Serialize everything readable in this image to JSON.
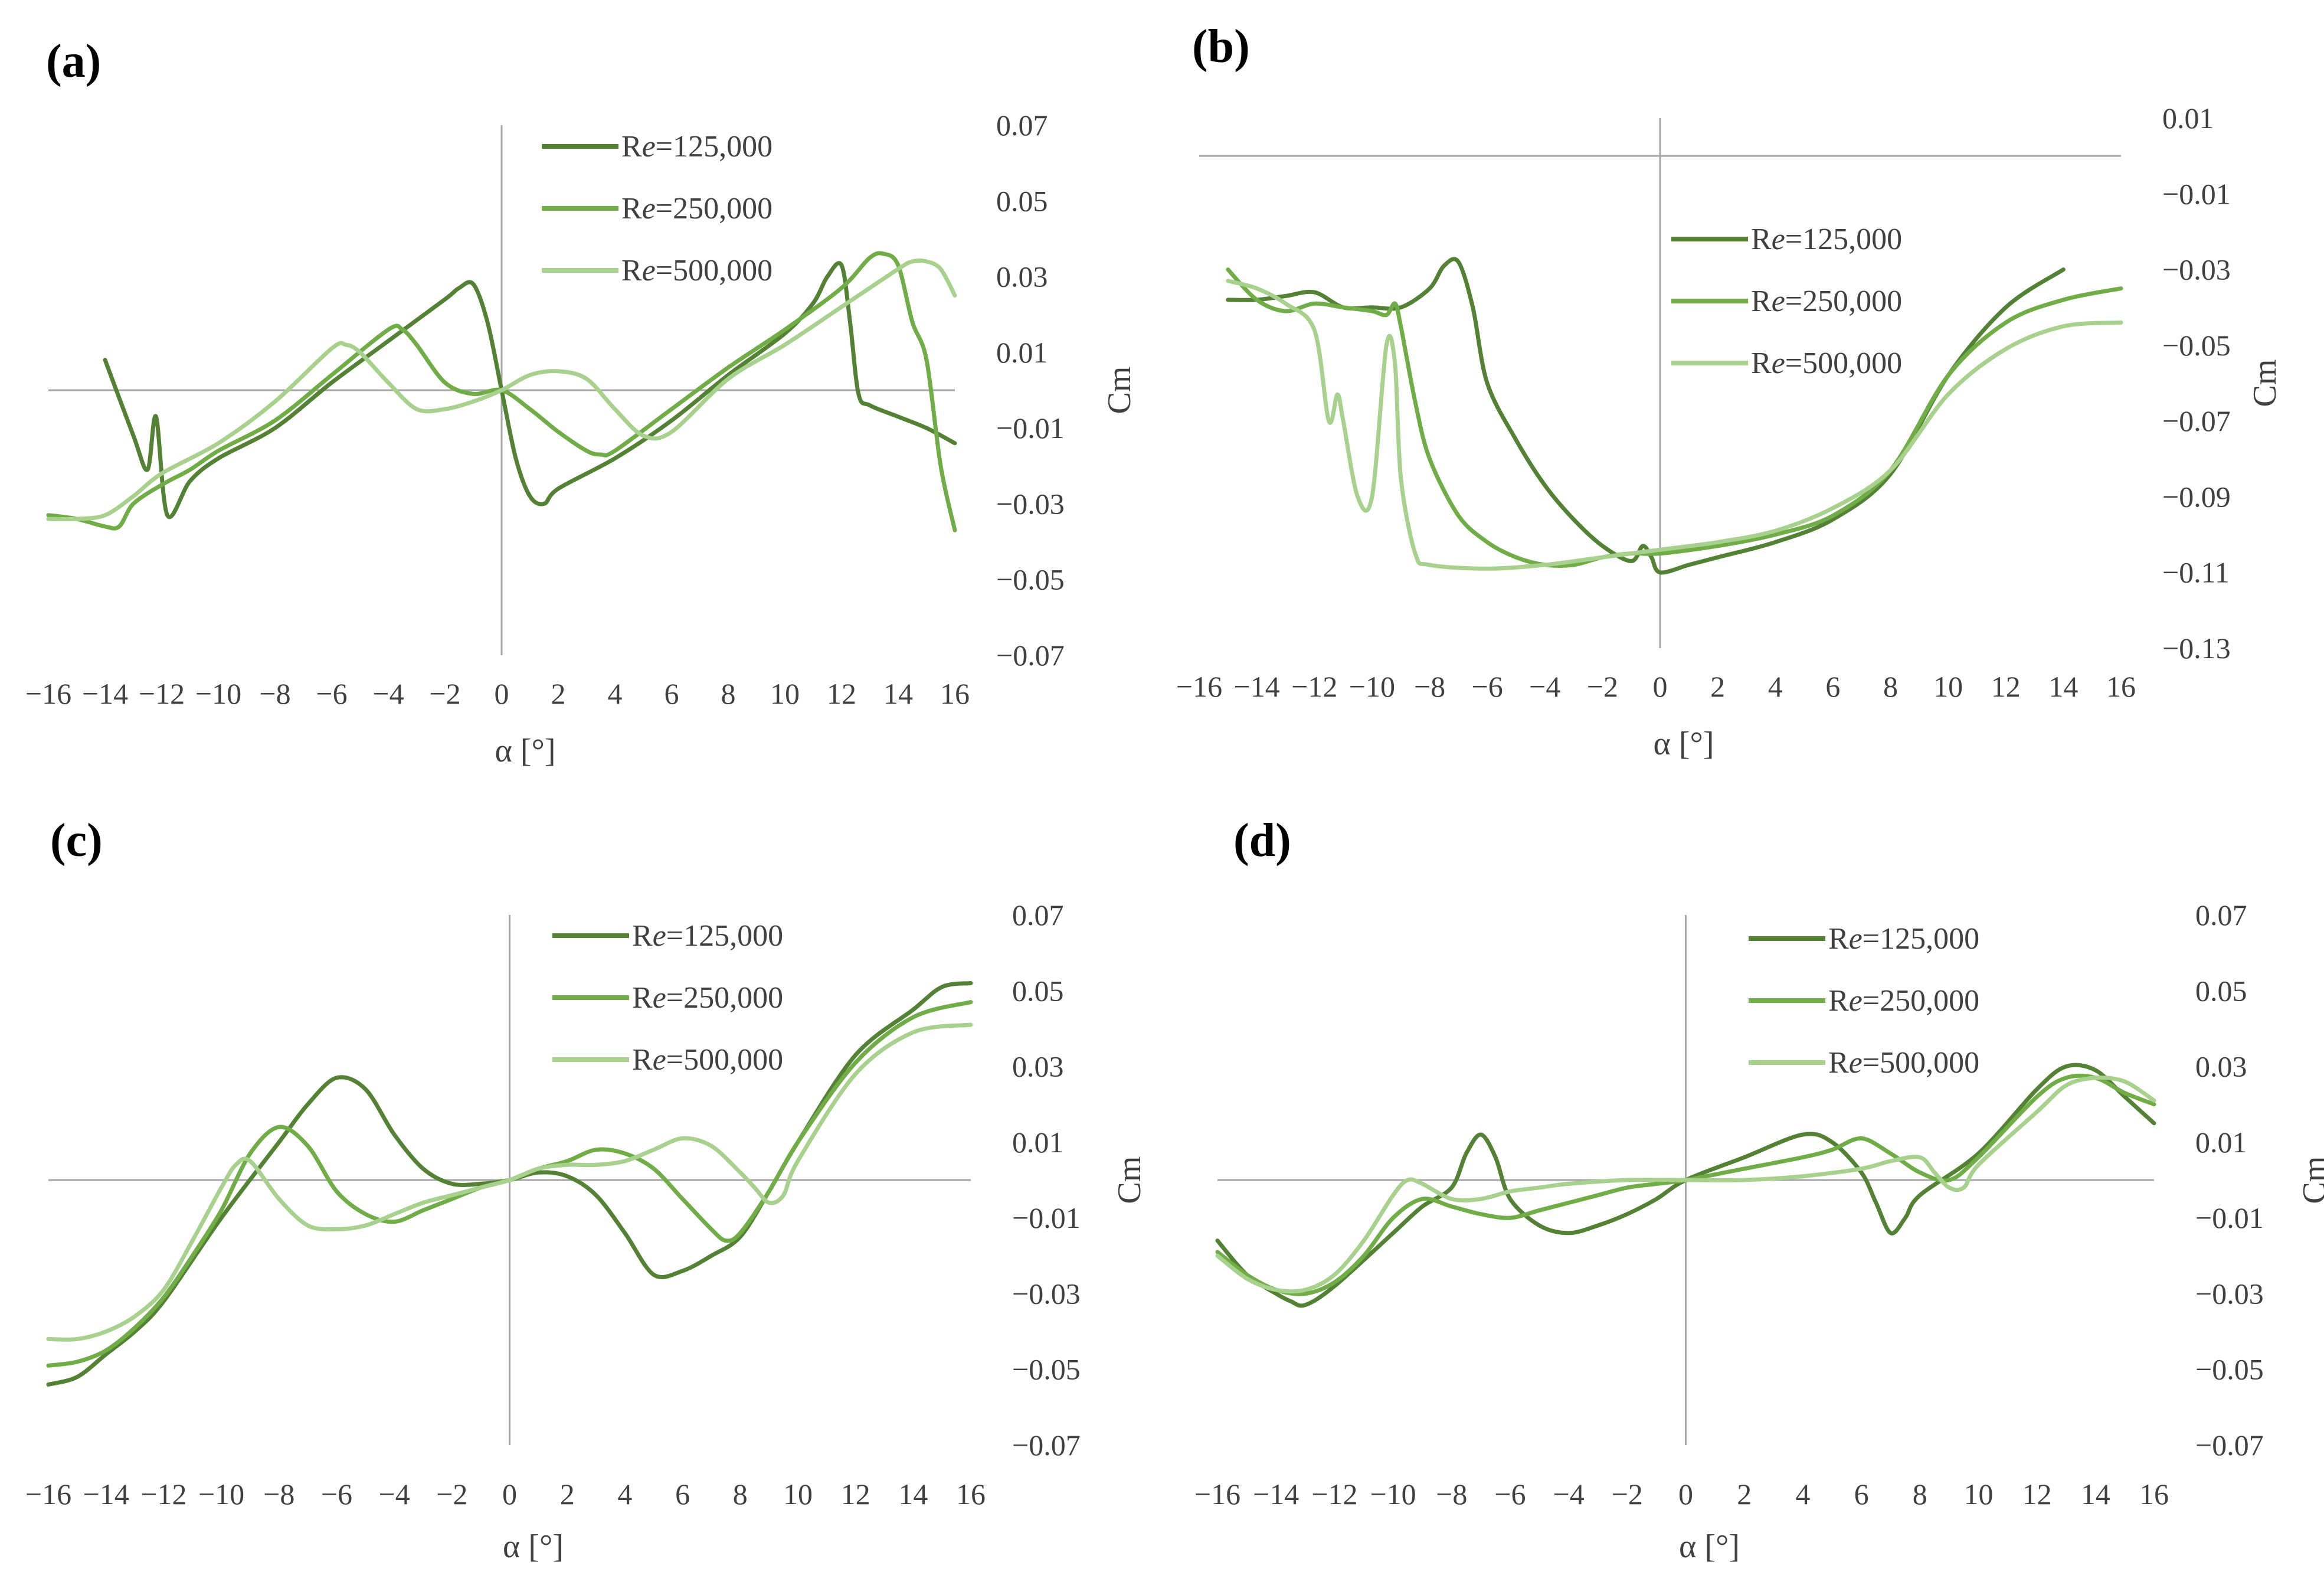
{
  "figure": {
    "colors": {
      "re125": "#548235",
      "re250": "#70ad47",
      "re500": "#a9d18e",
      "axis": "#a6a6a6",
      "text": "#404040"
    }
  },
  "chart_data": [
    {
      "panel": "(a)",
      "type": "line",
      "xlabel": "α [°]",
      "ylabel": "Cm",
      "xlim": [
        -16,
        16
      ],
      "ylim": [
        -0.07,
        0.07
      ],
      "x_ticks": [
        -16,
        -14,
        -12,
        -10,
        -8,
        -6,
        -4,
        -2,
        0,
        2,
        4,
        6,
        8,
        10,
        12,
        14,
        16
      ],
      "y_ticks": [
        0.07,
        0.05,
        0.03,
        0.01,
        -0.01,
        -0.03,
        -0.05,
        -0.07
      ],
      "series": [
        {
          "name": "Re=125,000",
          "x": [
            -14,
            -13,
            -12.5,
            -12.2,
            -11.8,
            -11,
            -10,
            -8,
            -6,
            -4,
            -2,
            -1.5,
            -1,
            -0.5,
            0,
            0.5,
            1,
            1.5,
            2,
            4,
            6,
            8,
            10,
            11,
            11.5,
            12,
            12.3,
            12.6,
            13,
            14,
            15,
            16
          ],
          "y": [
            0.008,
            -0.012,
            -0.021,
            -0.007,
            -0.033,
            -0.024,
            -0.018,
            -0.01,
            0.002,
            0.013,
            0.024,
            0.027,
            0.028,
            0.018,
            0.0,
            -0.018,
            -0.028,
            -0.03,
            -0.026,
            -0.018,
            -0.008,
            0.004,
            0.015,
            0.023,
            0.03,
            0.033,
            0.018,
            -0.001,
            -0.004,
            -0.007,
            -0.01,
            -0.014
          ]
        },
        {
          "name": "Re=250,000",
          "x": [
            -16,
            -15,
            -14,
            -13.5,
            -13,
            -12,
            -11,
            -10,
            -8,
            -6,
            -4,
            -3.5,
            -3,
            -2,
            -1,
            0,
            1,
            2,
            3,
            3.5,
            4,
            6,
            8,
            10,
            12,
            13,
            13.5,
            14,
            14.5,
            15,
            15.5,
            16
          ],
          "y": [
            -0.033,
            -0.034,
            -0.036,
            -0.036,
            -0.03,
            -0.025,
            -0.021,
            -0.016,
            -0.008,
            0.004,
            0.016,
            0.016,
            0.012,
            0.002,
            -0.001,
            0.0,
            -0.005,
            -0.011,
            -0.016,
            -0.017,
            -0.016,
            -0.005,
            0.006,
            0.016,
            0.027,
            0.035,
            0.036,
            0.033,
            0.018,
            0.008,
            -0.02,
            -0.037
          ]
        },
        {
          "name": "Re=500,000",
          "x": [
            -16,
            -15,
            -14,
            -13,
            -12,
            -10,
            -8,
            -6,
            -5.5,
            -5,
            -4,
            -3,
            -2,
            -1,
            0,
            1,
            2,
            3,
            4,
            5,
            6,
            8,
            10,
            12,
            14,
            14.5,
            15,
            15.5,
            16
          ],
          "y": [
            -0.034,
            -0.034,
            -0.033,
            -0.028,
            -0.022,
            -0.014,
            -0.003,
            0.011,
            0.012,
            0.01,
            0.002,
            -0.005,
            -0.005,
            -0.003,
            0.0,
            0.004,
            0.005,
            0.003,
            -0.005,
            -0.012,
            -0.011,
            0.003,
            0.012,
            0.022,
            0.032,
            0.034,
            0.034,
            0.032,
            0.025
          ]
        }
      ]
    },
    {
      "panel": "(b)",
      "type": "line",
      "xlabel": "α [°]",
      "ylabel": "Cm",
      "xlim": [
        -16,
        16
      ],
      "ylim": [
        -0.13,
        0.01
      ],
      "x_ticks": [
        -16,
        -14,
        -12,
        -10,
        -8,
        -6,
        -4,
        -2,
        0,
        2,
        4,
        6,
        8,
        10,
        12,
        14,
        16
      ],
      "y_ticks": [
        0.01,
        -0.01,
        -0.03,
        -0.05,
        -0.07,
        -0.09,
        -0.11,
        -0.13
      ],
      "series": [
        {
          "name": "Re=125,000",
          "x": [
            -15,
            -14,
            -13,
            -12,
            -11,
            -10,
            -9,
            -8,
            -7.5,
            -7,
            -6.5,
            -6,
            -5,
            -4,
            -3,
            -2,
            -1,
            -0.6,
            -0.3,
            0,
            1,
            2,
            4,
            6,
            8,
            10,
            12,
            14
          ],
          "y": [
            -0.038,
            -0.038,
            -0.037,
            -0.036,
            -0.04,
            -0.04,
            -0.04,
            -0.035,
            -0.029,
            -0.028,
            -0.04,
            -0.06,
            -0.075,
            -0.087,
            -0.096,
            -0.103,
            -0.107,
            -0.103,
            -0.106,
            -0.11,
            -0.108,
            -0.106,
            -0.102,
            -0.096,
            -0.084,
            -0.058,
            -0.04,
            -0.03
          ]
        },
        {
          "name": "Re=250,000",
          "x": [
            -15,
            -14,
            -13,
            -12,
            -11,
            -10,
            -9.5,
            -9.2,
            -9,
            -8.5,
            -8,
            -7,
            -6,
            -5,
            -4,
            -3,
            -2,
            -1,
            0,
            2,
            4,
            6,
            8,
            10,
            12,
            14,
            16
          ],
          "y": [
            -0.03,
            -0.038,
            -0.041,
            -0.039,
            -0.04,
            -0.041,
            -0.042,
            -0.039,
            -0.045,
            -0.065,
            -0.08,
            -0.095,
            -0.102,
            -0.106,
            -0.108,
            -0.108,
            -0.106,
            -0.105,
            -0.105,
            -0.103,
            -0.1,
            -0.095,
            -0.083,
            -0.058,
            -0.044,
            -0.038,
            -0.035
          ]
        },
        {
          "name": "Re=500,000",
          "x": [
            -15,
            -14,
            -13,
            -12,
            -11.5,
            -11.2,
            -11,
            -10.5,
            -10,
            -9.5,
            -9.2,
            -9,
            -8.5,
            -8,
            -6,
            -4,
            -2,
            0,
            2,
            4,
            6,
            8,
            10,
            12,
            14,
            16
          ],
          "y": [
            -0.033,
            -0.035,
            -0.039,
            -0.046,
            -0.07,
            -0.063,
            -0.07,
            -0.09,
            -0.09,
            -0.05,
            -0.055,
            -0.085,
            -0.105,
            -0.108,
            -0.109,
            -0.108,
            -0.106,
            -0.104,
            -0.102,
            -0.099,
            -0.093,
            -0.083,
            -0.063,
            -0.051,
            -0.045,
            -0.044
          ]
        }
      ]
    },
    {
      "panel": "(c)",
      "type": "line",
      "xlabel": "α [°]",
      "ylabel": "Cm",
      "xlim": [
        -16,
        16
      ],
      "ylim": [
        -0.07,
        0.07
      ],
      "x_ticks": [
        -16,
        -14,
        -12,
        -10,
        -8,
        -6,
        -4,
        -2,
        0,
        2,
        4,
        6,
        8,
        10,
        12,
        14,
        16
      ],
      "y_ticks": [
        0.07,
        0.05,
        0.03,
        0.01,
        -0.01,
        -0.03,
        -0.05,
        -0.07
      ],
      "series": [
        {
          "name": "Re=125,000",
          "x": [
            -16,
            -15,
            -14,
            -13,
            -12,
            -10,
            -8,
            -7,
            -6,
            -5,
            -4,
            -3,
            -2,
            -1,
            0,
            1,
            2,
            3,
            4,
            5,
            6,
            7,
            8,
            9,
            10,
            12,
            14,
            15,
            16
          ],
          "y": [
            -0.054,
            -0.052,
            -0.046,
            -0.04,
            -0.032,
            -0.01,
            0.01,
            0.02,
            0.027,
            0.024,
            0.012,
            0.003,
            -0.001,
            -0.001,
            0.0,
            0.002,
            0.001,
            -0.004,
            -0.014,
            -0.025,
            -0.024,
            -0.02,
            -0.015,
            -0.003,
            0.01,
            0.033,
            0.045,
            0.051,
            0.052
          ]
        },
        {
          "name": "Re=250,000",
          "x": [
            -16,
            -15,
            -14,
            -13,
            -12,
            -11,
            -10,
            -9,
            -8,
            -7,
            -6,
            -5,
            -4,
            -3,
            -2,
            -1,
            0,
            1,
            2,
            3,
            4,
            5,
            6,
            7,
            7.5,
            8,
            9,
            10,
            12,
            14,
            16
          ],
          "y": [
            -0.049,
            -0.048,
            -0.045,
            -0.039,
            -0.031,
            -0.02,
            -0.008,
            0.007,
            0.014,
            0.009,
            -0.003,
            -0.009,
            -0.011,
            -0.008,
            -0.005,
            -0.002,
            0.0,
            0.003,
            0.005,
            0.008,
            0.007,
            0.003,
            -0.005,
            -0.013,
            -0.016,
            -0.014,
            -0.003,
            0.01,
            0.031,
            0.043,
            0.047
          ]
        },
        {
          "name": "Re=500,000",
          "x": [
            -16,
            -15,
            -14,
            -13,
            -12,
            -11,
            -10,
            -9.5,
            -9,
            -8,
            -7,
            -6,
            -5,
            -4,
            -3,
            -2,
            -1,
            0,
            1,
            2,
            3,
            4,
            5,
            6,
            7,
            8,
            8.5,
            9,
            9.5,
            10,
            12,
            14,
            16
          ],
          "y": [
            -0.042,
            -0.042,
            -0.04,
            -0.036,
            -0.029,
            -0.016,
            -0.002,
            0.004,
            0.005,
            -0.005,
            -0.012,
            -0.013,
            -0.012,
            -0.009,
            -0.006,
            -0.004,
            -0.002,
            0.0,
            0.003,
            0.004,
            0.004,
            0.005,
            0.008,
            0.011,
            0.009,
            0.002,
            -0.002,
            -0.006,
            -0.004,
            0.005,
            0.028,
            0.039,
            0.041
          ]
        }
      ]
    },
    {
      "panel": "(d)",
      "type": "line",
      "xlabel": "α [°]",
      "ylabel": "Cm",
      "xlim": [
        -16,
        16
      ],
      "ylim": [
        -0.07,
        0.07
      ],
      "x_ticks": [
        -16,
        -14,
        -12,
        -10,
        -8,
        -6,
        -4,
        -2,
        0,
        2,
        4,
        6,
        8,
        10,
        12,
        14,
        16
      ],
      "y_ticks": [
        0.07,
        0.05,
        0.03,
        0.01,
        -0.01,
        -0.03,
        -0.05,
        -0.07
      ],
      "series": [
        {
          "name": "Re=125,000",
          "x": [
            -16,
            -15,
            -14,
            -13.5,
            -13,
            -12,
            -10,
            -9,
            -8,
            -7.5,
            -7,
            -6.5,
            -6,
            -5,
            -4,
            -3,
            -2,
            -1,
            0,
            2,
            4,
            5,
            6,
            6.5,
            7,
            7.5,
            8,
            10,
            12,
            13,
            14,
            15,
            16
          ],
          "y": [
            -0.016,
            -0.025,
            -0.03,
            -0.032,
            -0.033,
            -0.028,
            -0.014,
            -0.007,
            -0.002,
            0.007,
            0.012,
            0.006,
            -0.005,
            -0.012,
            -0.014,
            -0.012,
            -0.009,
            -0.005,
            0.0,
            0.006,
            0.012,
            0.01,
            0.002,
            -0.006,
            -0.014,
            -0.01,
            -0.004,
            0.007,
            0.024,
            0.03,
            0.029,
            0.022,
            0.015
          ]
        },
        {
          "name": "Re=250,000",
          "x": [
            -16,
            -15,
            -14,
            -13,
            -12,
            -11,
            -10,
            -9,
            -8,
            -7,
            -6,
            -5,
            -4,
            -3,
            -2,
            -1,
            0,
            2,
            4,
            5,
            6,
            7,
            8,
            9,
            10,
            12,
            13,
            14,
            15,
            16
          ],
          "y": [
            -0.019,
            -0.025,
            -0.029,
            -0.03,
            -0.027,
            -0.02,
            -0.01,
            -0.005,
            -0.007,
            -0.009,
            -0.01,
            -0.008,
            -0.006,
            -0.004,
            -0.002,
            -0.001,
            0.0,
            0.003,
            0.006,
            0.008,
            0.011,
            0.007,
            0.002,
            0.0,
            0.006,
            0.022,
            0.027,
            0.027,
            0.023,
            0.02
          ]
        },
        {
          "name": "Re=500,000",
          "x": [
            -16,
            -15,
            -14,
            -13,
            -12,
            -11,
            -10,
            -9.5,
            -9,
            -8,
            -7,
            -6,
            -5,
            -4,
            -2,
            0,
            2,
            4,
            6,
            7,
            8,
            8.5,
            9,
            9.5,
            10,
            12,
            13,
            14,
            15,
            16
          ],
          "y": [
            -0.02,
            -0.026,
            -0.029,
            -0.029,
            -0.025,
            -0.016,
            -0.004,
            0.0,
            -0.001,
            -0.005,
            -0.005,
            -0.003,
            -0.002,
            -0.001,
            0.0,
            0.0,
            0.0,
            0.001,
            0.003,
            0.005,
            0.006,
            0.002,
            -0.002,
            -0.002,
            0.004,
            0.018,
            0.025,
            0.027,
            0.026,
            0.021
          ]
        }
      ]
    }
  ]
}
